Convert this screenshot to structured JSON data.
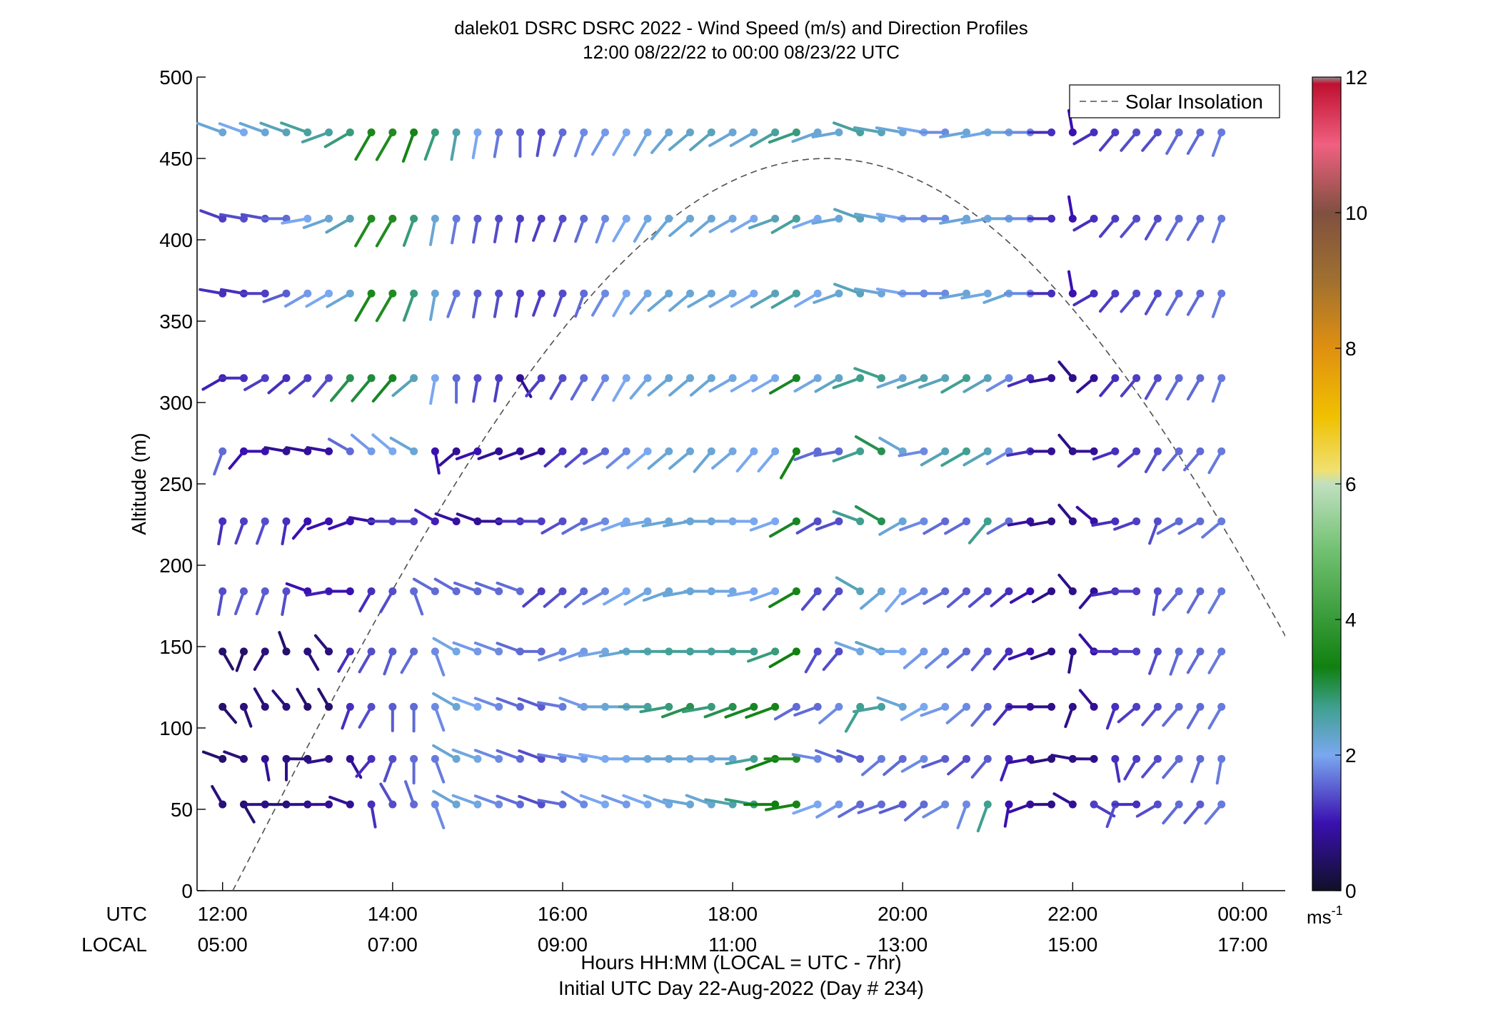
{
  "chart_data": {
    "type": "wind_barb_profile",
    "title": "dalek01 DSRC DSRC 2022 - Wind Speed (m/s) and Direction Profiles",
    "subtitle": "12:00 08/22/22 to 00:00 08/23/22  UTC",
    "ylabel": "Altitude (m)",
    "ylim": [
      0,
      500
    ],
    "yticks": [
      0,
      50,
      100,
      150,
      200,
      250,
      300,
      350,
      400,
      450,
      500
    ],
    "xlim_hours": [
      11.7,
      24.5
    ],
    "xtick_hours": [
      12,
      14,
      16,
      18,
      20,
      22,
      24
    ],
    "x_ticks_utc": [
      "12:00",
      "14:00",
      "16:00",
      "18:00",
      "20:00",
      "22:00",
      "00:00"
    ],
    "x_ticks_local": [
      "05:00",
      "07:00",
      "09:00",
      "11:00",
      "13:00",
      "15:00",
      "17:00"
    ],
    "x_row_utc_label": "UTC",
    "x_row_local_label": "LOCAL",
    "xlabel": "Hours HH:MM  (LOCAL = UTC - 7hr)",
    "xlabel2": "Initial UTC Day 22-Aug-2022 (Day # 234)",
    "legend": {
      "label": "Solar Insolation",
      "position": "top-right",
      "style": "dashed"
    },
    "colorbar": {
      "min": 0,
      "max": 12,
      "ticks": [
        "0",
        "2",
        "4",
        "6",
        "8",
        "10",
        "12"
      ],
      "unit": "ms",
      "unit_exp": "-1",
      "colors": {
        "0": "#101028",
        "1": "#3a10b0",
        "2": "#7aa8f0",
        "2.7": "#40a090",
        "3.3": "#108010",
        "5": "#70c070",
        "6": "#c0e0c0",
        "6.2": "#f0e070",
        "7": "#f0c000",
        "8": "#e09010",
        "9": "#a07030",
        "10": "#805040",
        "11": "#f06080",
        "11.9": "#c01030",
        "12": "#909090"
      }
    },
    "solar_insolation": {
      "start_hour": 12.12,
      "peak_hour": 19.1,
      "end_hour": 26.08,
      "peak_altitude": 450
    },
    "times_hours": [
      12,
      12.25,
      12.5,
      12.75,
      13,
      13.25,
      13.5,
      13.75,
      14,
      14.25,
      14.5,
      14.75,
      15,
      15.25,
      15.5,
      15.75,
      16,
      16.25,
      16.5,
      16.75,
      17,
      17.25,
      17.5,
      17.75,
      18,
      18.25,
      18.5,
      18.75,
      19,
      19.25,
      19.5,
      19.75,
      20,
      20.25,
      20.5,
      20.75,
      21,
      21.25,
      21.5,
      21.75,
      22,
      22.25,
      22.5,
      22.75,
      23,
      23.25,
      23.5,
      23.75
    ],
    "altitudes_m": [
      53,
      81,
      113,
      147,
      184,
      227,
      270,
      315,
      367,
      413,
      466
    ],
    "wind_dir_deg": [
      [
        330,
        150,
        270,
        270,
        270,
        270,
        290,
        170,
        330,
        340,
        160,
        300,
        290,
        290,
        290,
        290,
        280,
        300,
        290,
        290,
        290,
        290,
        280,
        290,
        280,
        280,
        270,
        260,
        250,
        240,
        240,
        250,
        250,
        230,
        240,
        200,
        200,
        190,
        250,
        270,
        300,
        120,
        200,
        270,
        240,
        220,
        220,
        220
      ],
      [
        290,
        290,
        170,
        180,
        270,
        260,
        150,
        220,
        200,
        180,
        160,
        300,
        290,
        290,
        290,
        290,
        280,
        280,
        280,
        270,
        270,
        270,
        270,
        270,
        270,
        260,
        250,
        270,
        280,
        290,
        290,
        230,
        230,
        240,
        250,
        230,
        220,
        200,
        260,
        260,
        280,
        270,
        170,
        210,
        220,
        220,
        200,
        190
      ],
      [
        140,
        160,
        330,
        320,
        330,
        330,
        200,
        210,
        180,
        180,
        160,
        300,
        290,
        290,
        290,
        290,
        280,
        290,
        270,
        270,
        270,
        260,
        250,
        260,
        250,
        250,
        250,
        240,
        250,
        230,
        210,
        260,
        290,
        240,
        250,
        230,
        220,
        220,
        270,
        270,
        200,
        320,
        200,
        230,
        220,
        220,
        210,
        210
      ],
      [
        150,
        200,
        210,
        340,
        150,
        320,
        210,
        210,
        200,
        210,
        160,
        300,
        290,
        290,
        290,
        270,
        250,
        250,
        260,
        260,
        270,
        270,
        270,
        270,
        270,
        270,
        250,
        240,
        210,
        220,
        290,
        290,
        270,
        230,
        230,
        230,
        220,
        220,
        250,
        250,
        190,
        320,
        270,
        270,
        200,
        200,
        210,
        210
      ],
      [
        190,
        200,
        200,
        190,
        290,
        260,
        270,
        210,
        210,
        160,
        300,
        300,
        290,
        290,
        290,
        230,
        230,
        230,
        240,
        240,
        240,
        250,
        260,
        270,
        270,
        260,
        250,
        240,
        220,
        220,
        300,
        230,
        220,
        240,
        240,
        230,
        230,
        230,
        240,
        240,
        320,
        220,
        260,
        270,
        190,
        220,
        210,
        210
      ],
      [
        190,
        200,
        200,
        190,
        220,
        250,
        250,
        280,
        270,
        270,
        300,
        290,
        290,
        270,
        270,
        270,
        240,
        240,
        250,
        250,
        260,
        260,
        260,
        270,
        270,
        270,
        250,
        240,
        240,
        250,
        290,
        300,
        240,
        250,
        240,
        240,
        220,
        240,
        260,
        260,
        320,
        310,
        260,
        250,
        200,
        240,
        240,
        230
      ],
      [
        200,
        220,
        270,
        280,
        280,
        280,
        300,
        310,
        310,
        300,
        170,
        230,
        250,
        250,
        250,
        250,
        230,
        230,
        240,
        230,
        230,
        230,
        230,
        220,
        230,
        220,
        220,
        210,
        250,
        260,
        250,
        300,
        300,
        260,
        240,
        240,
        240,
        240,
        260,
        270,
        320,
        270,
        250,
        230,
        210,
        220,
        220,
        210
      ],
      [
        240,
        270,
        240,
        230,
        230,
        220,
        220,
        220,
        220,
        230,
        190,
        180,
        190,
        190,
        150,
        220,
        210,
        210,
        210,
        210,
        220,
        230,
        230,
        230,
        240,
        240,
        240,
        240,
        240,
        240,
        250,
        290,
        250,
        250,
        250,
        240,
        240,
        240,
        250,
        260,
        320,
        230,
        220,
        220,
        210,
        210,
        210,
        200
      ],
      [
        280,
        280,
        270,
        250,
        240,
        240,
        240,
        210,
        210,
        200,
        190,
        200,
        190,
        190,
        190,
        200,
        200,
        200,
        210,
        210,
        220,
        230,
        230,
        240,
        240,
        240,
        240,
        240,
        240,
        250,
        290,
        280,
        280,
        270,
        270,
        260,
        260,
        250,
        270,
        270,
        350,
        240,
        220,
        220,
        210,
        210,
        210,
        200
      ],
      [
        290,
        280,
        280,
        270,
        260,
        250,
        240,
        210,
        210,
        200,
        190,
        190,
        190,
        190,
        190,
        200,
        200,
        200,
        200,
        210,
        210,
        220,
        230,
        230,
        240,
        240,
        250,
        240,
        250,
        260,
        290,
        280,
        280,
        270,
        270,
        260,
        260,
        270,
        270,
        270,
        350,
        240,
        220,
        220,
        210,
        210,
        210,
        200
      ],
      [
        290,
        290,
        290,
        290,
        290,
        250,
        240,
        210,
        210,
        200,
        200,
        190,
        190,
        190,
        180,
        190,
        200,
        200,
        210,
        210,
        210,
        220,
        230,
        230,
        240,
        240,
        240,
        250,
        250,
        260,
        290,
        280,
        280,
        280,
        270,
        260,
        260,
        270,
        270,
        270,
        350,
        240,
        220,
        220,
        220,
        210,
        210,
        200
      ]
    ],
    "wind_speed_ms": [
      [
        0.6,
        0.5,
        0.7,
        0.6,
        0.7,
        0.8,
        0.8,
        1.2,
        1.4,
        1.6,
        1.8,
        2.2,
        2.1,
        1.8,
        1.6,
        1.4,
        1.6,
        1.8,
        2.0,
        1.9,
        2.0,
        2.1,
        2.2,
        2.2,
        2.5,
        2.8,
        3.3,
        3.4,
        2.0,
        1.9,
        1.6,
        1.6,
        1.5,
        1.6,
        1.8,
        1.8,
        2.7,
        1.0,
        0.9,
        0.7,
        0.8,
        1.3,
        1.4,
        1.2,
        1.4,
        1.6,
        1.5,
        1.7
      ],
      [
        0.5,
        0.6,
        0.8,
        0.7,
        0.6,
        0.7,
        0.8,
        1.2,
        1.4,
        1.6,
        1.7,
        2.2,
        2.1,
        1.8,
        1.6,
        1.4,
        1.7,
        1.9,
        2.0,
        2.0,
        2.1,
        2.2,
        2.2,
        2.1,
        2.2,
        2.6,
        3.3,
        3.6,
        1.8,
        1.6,
        1.5,
        1.7,
        1.6,
        1.8,
        1.5,
        1.4,
        1.5,
        1.1,
        0.9,
        0.6,
        0.7,
        0.7,
        1.2,
        1.3,
        1.4,
        1.6,
        1.6,
        1.7
      ],
      [
        0.5,
        0.6,
        0.6,
        0.6,
        0.5,
        0.5,
        1.2,
        1.4,
        1.5,
        1.6,
        1.8,
        2.2,
        2.0,
        1.8,
        1.6,
        1.5,
        1.7,
        1.9,
        2.2,
        2.2,
        2.6,
        2.8,
        3.0,
        2.8,
        3.0,
        3.2,
        3.4,
        1.6,
        1.6,
        1.8,
        2.7,
        2.6,
        2.2,
        2.0,
        1.9,
        1.8,
        1.6,
        1.2,
        0.9,
        0.7,
        0.7,
        0.8,
        1.2,
        1.3,
        1.4,
        1.6,
        1.6,
        1.7
      ],
      [
        0.5,
        0.5,
        0.6,
        0.5,
        0.6,
        0.6,
        1.2,
        1.4,
        1.5,
        1.6,
        1.8,
        2.1,
        1.9,
        1.8,
        1.6,
        1.6,
        1.8,
        1.9,
        2.1,
        2.2,
        2.4,
        2.6,
        2.7,
        2.6,
        2.6,
        2.7,
        2.8,
        3.3,
        1.4,
        1.4,
        2.1,
        2.3,
        2.0,
        1.9,
        1.8,
        1.6,
        1.5,
        1.2,
        1.0,
        0.7,
        0.7,
        0.9,
        1.2,
        1.3,
        1.4,
        1.6,
        1.6,
        1.7
      ],
      [
        1.4,
        1.5,
        1.5,
        1.4,
        1.0,
        1.1,
        1.0,
        1.2,
        1.4,
        1.6,
        1.6,
        1.6,
        1.6,
        1.6,
        1.6,
        1.3,
        1.4,
        1.6,
        1.8,
        2.0,
        2.1,
        2.2,
        2.2,
        2.2,
        2.1,
        2.0,
        2.0,
        3.4,
        1.4,
        1.4,
        2.4,
        2.2,
        2.0,
        1.8,
        1.6,
        1.5,
        1.4,
        1.2,
        1.0,
        0.7,
        0.7,
        0.8,
        1.2,
        1.3,
        1.4,
        1.6,
        1.6,
        1.7
      ],
      [
        1.2,
        1.3,
        1.4,
        1.2,
        1.0,
        1.0,
        1.0,
        0.9,
        1.3,
        1.3,
        1.1,
        0.9,
        0.8,
        0.8,
        1.2,
        1.3,
        1.4,
        1.6,
        1.8,
        2.0,
        2.1,
        2.2,
        2.2,
        2.2,
        2.1,
        2.0,
        2.0,
        3.2,
        1.4,
        1.4,
        2.7,
        3.0,
        2.2,
        1.8,
        1.6,
        1.6,
        2.7,
        1.6,
        0.9,
        0.7,
        0.7,
        0.9,
        1.2,
        1.3,
        1.4,
        1.6,
        1.6,
        1.7
      ],
      [
        1.6,
        1.0,
        1.0,
        0.8,
        0.8,
        0.9,
        1.6,
        1.9,
        2.0,
        2.2,
        1.0,
        0.8,
        1.0,
        0.8,
        0.8,
        0.8,
        1.2,
        1.4,
        1.6,
        1.8,
        2.0,
        2.2,
        2.2,
        2.2,
        2.1,
        2.0,
        2.0,
        3.4,
        1.6,
        1.6,
        2.7,
        3.0,
        2.2,
        1.8,
        2.4,
        2.7,
        2.4,
        1.8,
        1.2,
        0.8,
        0.7,
        0.8,
        1.2,
        1.3,
        1.4,
        1.6,
        1.6,
        1.7
      ],
      [
        1.1,
        1.2,
        1.3,
        1.2,
        1.3,
        1.4,
        3.0,
        3.1,
        3.2,
        2.4,
        2.0,
        1.6,
        1.4,
        1.3,
        0.8,
        1.3,
        1.4,
        1.6,
        1.8,
        2.0,
        2.1,
        2.2,
        2.2,
        2.2,
        2.1,
        2.0,
        2.0,
        3.2,
        2.1,
        2.3,
        2.7,
        2.7,
        2.2,
        2.5,
        2.4,
        2.7,
        2.4,
        1.8,
        1.2,
        0.8,
        0.7,
        0.8,
        1.2,
        1.3,
        1.4,
        1.6,
        1.6,
        1.7
      ],
      [
        1.2,
        1.2,
        1.3,
        1.5,
        1.9,
        2.0,
        2.2,
        3.5,
        3.6,
        2.8,
        2.2,
        1.7,
        1.5,
        1.4,
        1.3,
        1.3,
        1.4,
        1.6,
        1.8,
        2.0,
        2.1,
        2.2,
        2.2,
        2.2,
        2.1,
        2.0,
        2.4,
        2.6,
        2.0,
        2.2,
        2.4,
        2.2,
        2.0,
        1.8,
        1.8,
        2.2,
        2.1,
        2.2,
        1.8,
        1.2,
        1.0,
        1.2,
        1.3,
        1.4,
        1.4,
        1.6,
        1.6,
        1.7
      ],
      [
        1.3,
        1.4,
        1.4,
        1.6,
        2.0,
        2.2,
        2.4,
        3.6,
        3.6,
        2.8,
        2.2,
        1.7,
        1.5,
        1.4,
        1.3,
        1.3,
        1.4,
        1.6,
        1.8,
        2.0,
        2.1,
        2.2,
        2.2,
        2.2,
        2.1,
        2.0,
        2.4,
        2.6,
        2.0,
        2.2,
        2.4,
        2.2,
        2.0,
        1.8,
        1.8,
        2.2,
        2.1,
        2.2,
        1.8,
        1.2,
        1.0,
        1.2,
        1.3,
        1.4,
        1.4,
        1.6,
        1.6,
        1.7
      ],
      [
        2.2,
        2.0,
        2.2,
        2.4,
        2.6,
        2.6,
        2.8,
        3.5,
        3.6,
        3.4,
        2.8,
        2.5,
        2.0,
        1.7,
        1.5,
        1.4,
        1.6,
        1.8,
        1.9,
        2.0,
        2.1,
        2.2,
        2.3,
        2.4,
        2.2,
        2.2,
        2.6,
        2.8,
        2.2,
        2.2,
        2.6,
        2.4,
        2.2,
        2.0,
        1.8,
        2.2,
        2.1,
        2.2,
        1.8,
        1.2,
        1.0,
        1.2,
        1.3,
        1.4,
        1.4,
        1.6,
        1.6,
        1.7
      ]
    ]
  }
}
